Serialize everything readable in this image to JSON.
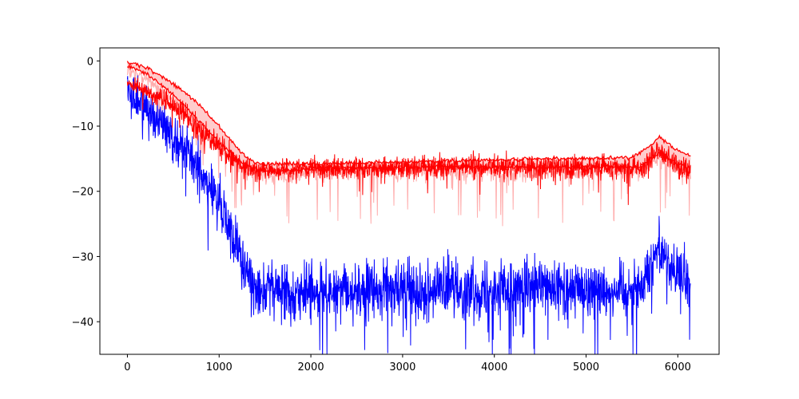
{
  "chart_data": {
    "type": "line",
    "title": "",
    "xlabel": "",
    "ylabel": "",
    "xlim": [
      -300,
      6450
    ],
    "ylim": [
      -45,
      2
    ],
    "x_ticks": [
      0,
      1000,
      2000,
      3000,
      4000,
      5000,
      6000
    ],
    "y_ticks": [
      0,
      -10,
      -20,
      -30,
      -40
    ],
    "grid": false,
    "legend": null,
    "colors": {
      "blue": "#0000ff",
      "red": "#ff0000",
      "pink_band": "#ffbbbb",
      "pink_line": "#ff9999",
      "axes": "#000000"
    },
    "series": [
      {
        "color": "blue",
        "style": "noisy",
        "x": [
          0,
          200,
          400,
          600,
          800,
          1000,
          1100,
          1200,
          1300,
          1500,
          2000,
          3000,
          4000,
          5000,
          5600,
          5700,
          5800,
          5900,
          6000,
          6140
        ],
        "y": [
          -5,
          -7,
          -10,
          -13,
          -17,
          -22,
          -25,
          -29,
          -33,
          -35,
          -35.5,
          -35,
          -35,
          -35,
          -35,
          -31,
          -28,
          -31,
          -33,
          -34
        ],
        "noise": [
          2.5,
          2.8,
          3,
          3,
          3.2,
          3.5,
          3.5,
          3.2,
          3.5,
          3.5,
          3.5,
          3.5,
          3.5,
          3.5,
          3.5,
          3.2,
          3,
          3,
          3.5,
          3.5
        ]
      },
      {
        "color": "red",
        "style": "noisy",
        "x": [
          0,
          200,
          400,
          600,
          800,
          1000,
          1100,
          1200,
          1300,
          1400,
          1500,
          2000,
          3000,
          4000,
          5000,
          5600,
          5700,
          5800,
          5900,
          6000,
          6140
        ],
        "y": [
          -3.5,
          -4.5,
          -6,
          -8,
          -10.5,
          -13,
          -14.5,
          -15.5,
          -16.5,
          -16.8,
          -16.8,
          -16.5,
          -16.3,
          -16.3,
          -16.3,
          -16.3,
          -15,
          -13.5,
          -15,
          -16,
          -17
        ],
        "noise": [
          0.8,
          1,
          1.2,
          1.5,
          1.5,
          1.5,
          1.5,
          1.2,
          1.2,
          1,
          1,
          1.2,
          1.3,
          1.5,
          1.5,
          1.5,
          1.5,
          1.5,
          1.5,
          1.6,
          1.6
        ]
      },
      {
        "color": "red",
        "style": "smooth",
        "x": [
          0,
          200,
          400,
          600,
          800,
          1000,
          1200,
          1300,
          1400,
          1500,
          2000,
          3000,
          4000,
          4800,
          5500,
          5700,
          5800,
          5900,
          6000,
          6140
        ],
        "y": [
          -0.2,
          -1,
          -2.5,
          -4.5,
          -7,
          -10,
          -13.5,
          -14.8,
          -15.6,
          -15.8,
          -15.8,
          -15.5,
          -15.2,
          -15,
          -14.8,
          -13,
          -11.5,
          -12.8,
          -13.8,
          -14.5
        ]
      },
      {
        "color": "red",
        "style": "smooth",
        "x": [
          0,
          200,
          400,
          600,
          800,
          1000,
          1200,
          1300,
          1400,
          1500,
          1700,
          2000,
          3000,
          4000,
          5000,
          5600,
          5800,
          5900,
          6000,
          6140
        ],
        "y": [
          -0.8,
          -2,
          -4,
          -6.5,
          -9.5,
          -12.5,
          -15,
          -16,
          -16.6,
          -16.8,
          -17,
          -16.5,
          -16.3,
          -16.3,
          -16.3,
          -16.2,
          -14,
          -15,
          -15.8,
          -16.5
        ]
      }
    ]
  }
}
